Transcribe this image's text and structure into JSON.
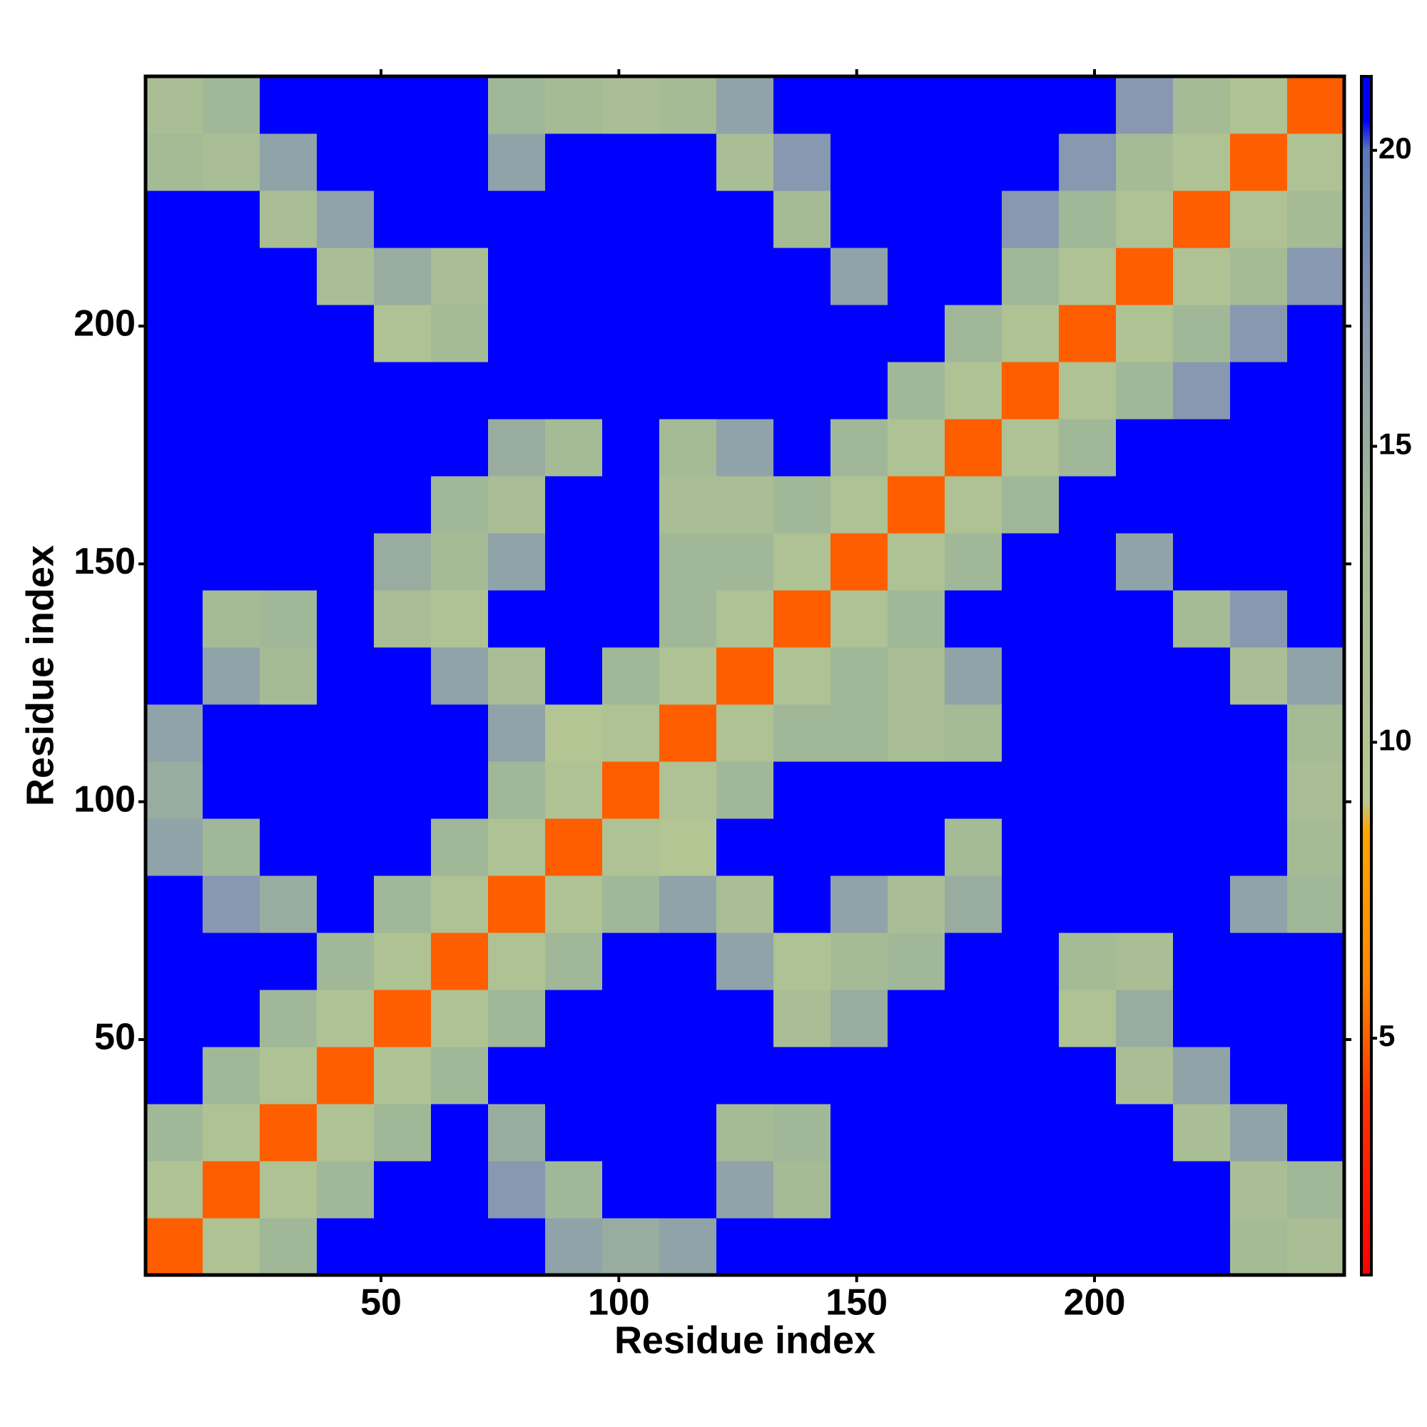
{
  "chart_data": {
    "type": "heatmap",
    "xlabel": "Residue index",
    "ylabel": "Residue index",
    "xbins": [
      0.5,
      12.5,
      24.5,
      36.5,
      48.5,
      60.5,
      72.5,
      84.5,
      96.5,
      108.5,
      120.5,
      132.5,
      144.5,
      156.5,
      168.5,
      180.5,
      192.5,
      204.5,
      216.5,
      228.5,
      240.5,
      252.5
    ],
    "ybins": [
      0.5,
      12.5,
      24.5,
      36.5,
      48.5,
      60.5,
      72.5,
      84.5,
      96.5,
      108.5,
      120.5,
      132.5,
      144.5,
      156.5,
      168.5,
      180.5,
      192.5,
      204.5,
      216.5,
      228.5,
      240.5,
      252.5
    ],
    "values": [
      [
        5,
        11,
        14,
        21,
        21,
        21,
        21,
        16,
        15,
        16,
        21,
        21,
        21,
        21,
        21,
        21,
        21,
        21,
        21,
        13,
        12
      ],
      [
        11,
        5,
        11,
        14,
        21,
        21,
        17,
        14,
        21,
        21,
        16,
        13,
        21,
        21,
        21,
        21,
        21,
        21,
        21,
        12,
        14
      ],
      [
        14,
        11,
        5,
        11,
        14,
        21,
        15,
        21,
        21,
        21,
        13,
        14,
        21,
        21,
        21,
        21,
        21,
        21,
        12,
        16,
        21
      ],
      [
        21,
        14,
        11,
        5,
        11,
        14,
        21,
        21,
        21,
        21,
        21,
        21,
        21,
        21,
        21,
        21,
        21,
        12,
        16,
        21,
        21
      ],
      [
        21,
        21,
        14,
        11,
        5,
        11,
        14,
        21,
        21,
        21,
        21,
        12,
        15,
        21,
        21,
        21,
        11,
        15,
        21,
        21,
        21
      ],
      [
        21,
        21,
        21,
        14,
        11,
        5,
        11,
        14,
        21,
        21,
        16,
        11,
        13,
        14,
        21,
        21,
        13,
        12,
        21,
        21,
        21
      ],
      [
        21,
        17,
        15,
        21,
        14,
        11,
        5,
        11,
        14,
        16,
        12,
        21,
        16,
        12,
        15,
        21,
        21,
        21,
        21,
        16,
        14
      ],
      [
        16,
        14,
        21,
        21,
        21,
        14,
        11,
        5,
        11,
        10,
        21,
        21,
        21,
        21,
        13,
        21,
        21,
        21,
        21,
        21,
        13
      ],
      [
        15,
        21,
        21,
        21,
        21,
        21,
        14,
        11,
        5,
        11,
        14,
        21,
        21,
        21,
        21,
        21,
        21,
        21,
        21,
        21,
        12
      ],
      [
        16,
        21,
        21,
        21,
        21,
        21,
        16,
        10,
        11,
        5,
        11,
        14,
        14,
        12,
        13,
        21,
        21,
        21,
        21,
        21,
        13
      ],
      [
        21,
        16,
        13,
        21,
        21,
        16,
        12,
        21,
        14,
        11,
        5,
        11,
        14,
        12,
        16,
        21,
        21,
        21,
        21,
        12,
        16
      ],
      [
        21,
        13,
        14,
        21,
        12,
        11,
        21,
        21,
        21,
        14,
        11,
        5,
        11,
        14,
        21,
        21,
        21,
        21,
        13,
        17,
        21
      ],
      [
        21,
        21,
        21,
        21,
        15,
        13,
        16,
        21,
        21,
        14,
        14,
        11,
        5,
        11,
        14,
        21,
        21,
        16,
        21,
        21,
        21
      ],
      [
        21,
        21,
        21,
        21,
        21,
        14,
        12,
        21,
        21,
        12,
        12,
        14,
        11,
        5,
        11,
        14,
        21,
        21,
        21,
        21,
        21
      ],
      [
        21,
        21,
        21,
        21,
        21,
        21,
        15,
        13,
        21,
        13,
        16,
        21,
        14,
        11,
        5,
        11,
        14,
        21,
        21,
        21,
        21
      ],
      [
        21,
        21,
        21,
        21,
        21,
        21,
        21,
        21,
        21,
        21,
        21,
        21,
        21,
        14,
        11,
        5,
        11,
        14,
        17,
        21,
        21
      ],
      [
        21,
        21,
        21,
        21,
        11,
        13,
        21,
        21,
        21,
        21,
        21,
        21,
        21,
        21,
        14,
        11,
        5,
        11,
        14,
        17,
        21
      ],
      [
        21,
        21,
        21,
        12,
        15,
        12,
        21,
        21,
        21,
        21,
        21,
        21,
        16,
        21,
        21,
        14,
        11,
        5,
        11,
        13,
        17
      ],
      [
        21,
        21,
        12,
        16,
        21,
        21,
        21,
        21,
        21,
        21,
        21,
        13,
        21,
        21,
        21,
        17,
        14,
        11,
        5,
        11,
        13
      ],
      [
        13,
        12,
        16,
        21,
        21,
        21,
        16,
        21,
        21,
        21,
        12,
        17,
        21,
        21,
        21,
        21,
        17,
        13,
        11,
        5,
        11
      ],
      [
        12,
        14,
        21,
        21,
        21,
        21,
        14,
        13,
        12,
        13,
        16,
        21,
        21,
        21,
        21,
        21,
        21,
        17,
        13,
        11,
        5
      ]
    ],
    "xlim": [
      0.5,
      252.5
    ],
    "ylim": [
      0.5,
      252.5
    ],
    "xticks": [
      50,
      100,
      150,
      200
    ],
    "yticks": [
      50,
      100,
      150,
      200
    ],
    "zlim": [
      1,
      21.25
    ],
    "zticks": [
      5,
      10,
      15,
      20
    ],
    "colorscale": [
      [
        1,
        "#ff0000"
      ],
      [
        4,
        "#ff3300"
      ],
      [
        6,
        "#ff8800"
      ],
      [
        8.5,
        "#ffa500"
      ],
      [
        9,
        "#b8c890"
      ],
      [
        14,
        "#a0b898"
      ],
      [
        17,
        "#8898b0"
      ],
      [
        20,
        "#5878b8"
      ],
      [
        20.5,
        "#0000ff"
      ],
      [
        21.25,
        "#0000ff"
      ]
    ]
  }
}
